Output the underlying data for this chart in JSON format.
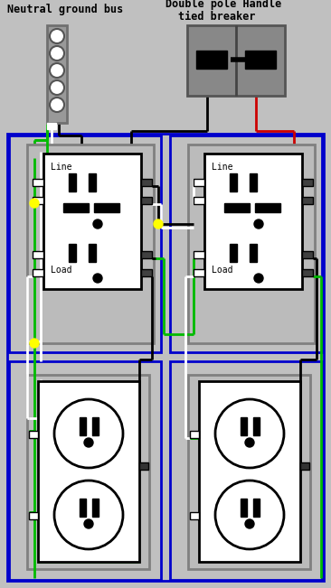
{
  "bg_color": "#c0c0c0",
  "title1": "Neutral ground bus",
  "title2": "Double pole Handle",
  "title3": "tied breaker",
  "wire_colors": {
    "black": "#000000",
    "white": "#ffffff",
    "green": "#00bb00",
    "red": "#cc0000",
    "blue": "#0000cc",
    "yellow": "#ffff00",
    "gray": "#808080"
  },
  "figsize": [
    3.66,
    6.51
  ],
  "dpi": 100
}
